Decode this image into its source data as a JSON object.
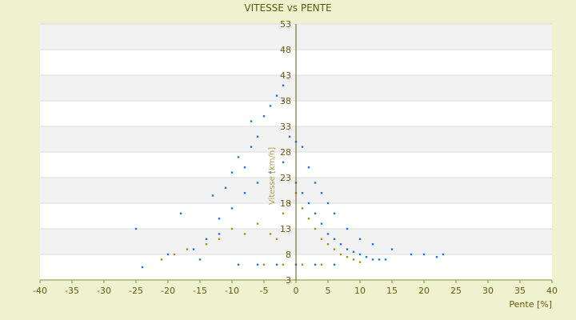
{
  "chart_data": {
    "type": "scatter",
    "title": "VITESSE vs PENTE",
    "xlabel": "Pente [%]",
    "ylabel": "Vitesse [km/h]",
    "xlim": [
      -40,
      40
    ],
    "ylim": [
      3,
      53
    ],
    "xticks": [
      -40,
      -35,
      -30,
      -25,
      -20,
      -15,
      -10,
      -5,
      0,
      5,
      10,
      15,
      20,
      25,
      30,
      35,
      40
    ],
    "yticks": [
      3,
      8,
      13,
      18,
      23,
      28,
      33,
      38,
      43,
      48,
      53
    ],
    "grid": "horizontal-bands",
    "series": [
      {
        "color": "#1f77d4",
        "points": [
          [
            -25,
            13
          ],
          [
            -24,
            5.5
          ],
          [
            -18,
            16
          ],
          [
            -15,
            7
          ],
          [
            -13,
            19.5
          ],
          [
            -12,
            12
          ],
          [
            -11,
            21
          ],
          [
            -10,
            24
          ],
          [
            -9,
            27
          ],
          [
            -8,
            25
          ],
          [
            -7,
            34
          ],
          [
            -7,
            29
          ],
          [
            -6,
            31
          ],
          [
            -5,
            35
          ],
          [
            -4,
            37
          ],
          [
            -3,
            39
          ],
          [
            -2,
            38
          ],
          [
            -2,
            41
          ],
          [
            -1,
            31
          ],
          [
            0,
            30
          ],
          [
            1,
            29
          ],
          [
            2,
            25
          ],
          [
            3,
            22
          ],
          [
            4,
            20
          ],
          [
            5,
            18
          ],
          [
            6,
            16
          ],
          [
            8,
            13
          ],
          [
            10,
            11
          ],
          [
            12,
            10
          ],
          [
            15,
            9
          ],
          [
            18,
            8
          ],
          [
            20,
            8
          ],
          [
            22,
            7.5
          ],
          [
            23,
            8
          ],
          [
            -20,
            8
          ],
          [
            -16,
            9
          ],
          [
            -14,
            11
          ],
          [
            -12,
            15
          ],
          [
            -10,
            17
          ],
          [
            -8,
            20
          ],
          [
            -6,
            22
          ],
          [
            -4,
            24
          ],
          [
            -2,
            26
          ],
          [
            0,
            22
          ],
          [
            1,
            20
          ],
          [
            2,
            18
          ],
          [
            3,
            16
          ],
          [
            4,
            14
          ],
          [
            5,
            12
          ],
          [
            6,
            11
          ],
          [
            7,
            10
          ],
          [
            8,
            9
          ],
          [
            9,
            8.5
          ],
          [
            10,
            8
          ],
          [
            11,
            7.5
          ],
          [
            12,
            7
          ],
          [
            13,
            7
          ],
          [
            14,
            7
          ],
          [
            -9,
            6
          ],
          [
            -6,
            6
          ],
          [
            -3,
            6
          ],
          [
            0,
            6
          ],
          [
            3,
            6
          ],
          [
            6,
            6
          ]
        ]
      },
      {
        "color": "#9a9a10",
        "points": [
          [
            -21,
            7
          ],
          [
            -19,
            8
          ],
          [
            -17,
            9
          ],
          [
            -14,
            10
          ],
          [
            -12,
            11
          ],
          [
            -10,
            13
          ],
          [
            -8,
            12
          ],
          [
            -6,
            14
          ],
          [
            -4,
            12
          ],
          [
            -3,
            11
          ],
          [
            -2,
            16
          ],
          [
            -1,
            18
          ],
          [
            0,
            20
          ],
          [
            1,
            17
          ],
          [
            2,
            15
          ],
          [
            3,
            13
          ],
          [
            4,
            11
          ],
          [
            5,
            10
          ],
          [
            6,
            9
          ],
          [
            7,
            8
          ],
          [
            8,
            7.5
          ],
          [
            9,
            7
          ],
          [
            10,
            6.5
          ],
          [
            -5,
            6
          ],
          [
            -2,
            6
          ],
          [
            1,
            6
          ],
          [
            4,
            6
          ]
        ]
      }
    ],
    "legend": "none"
  }
}
